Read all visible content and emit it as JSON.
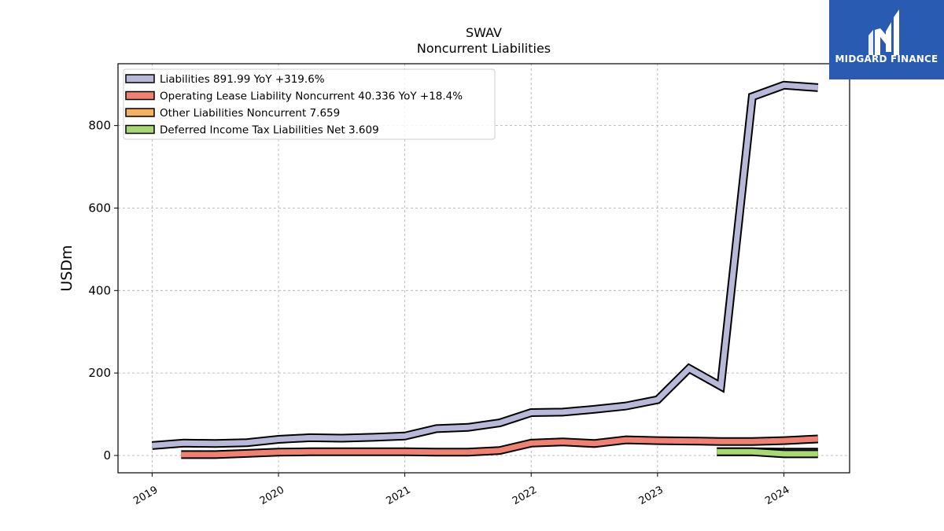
{
  "chart_data": {
    "type": "line",
    "title": "SWAV",
    "subtitle": "Noncurrent  Liabilities",
    "ylabel": "USDm",
    "xlabel": "",
    "ylim": [
      -42,
      950
    ],
    "xlim": [
      2018.73,
      2024.52
    ],
    "yticks": [
      0,
      200,
      400,
      600,
      800
    ],
    "xticks": [
      "2019",
      "2020",
      "2021",
      "2022",
      "2023",
      "2024"
    ],
    "grid": true,
    "legend_position": "top-left",
    "series": [
      {
        "name": "Liabilities",
        "legend_label": "Liabilities  891.99 YoY +319.6%",
        "color": "#b8b8d8",
        "x": [
          2019.0,
          2019.25,
          2019.5,
          2019.75,
          2020.0,
          2020.25,
          2020.5,
          2020.75,
          2021.0,
          2021.25,
          2021.5,
          2021.75,
          2022.0,
          2022.25,
          2022.5,
          2022.75,
          2023.0,
          2023.25,
          2023.5,
          2023.75,
          2024.0,
          2024.27
        ],
        "values": [
          24,
          30,
          29,
          31,
          39,
          43,
          42,
          44,
          47,
          65,
          68,
          79,
          104,
          105,
          112,
          120,
          135,
          211,
          168,
          870,
          898,
          892
        ]
      },
      {
        "name": "Operating Lease Liability Noncurrent",
        "legend_label": "Operating Lease Liability Noncurrent  40.336 YoY +18.4%",
        "color": "#f08070",
        "x": [
          2019.23,
          2019.5,
          2019.75,
          2020.0,
          2020.25,
          2020.5,
          2020.75,
          2021.0,
          2021.25,
          2021.5,
          2021.75,
          2022.0,
          2022.25,
          2022.5,
          2022.75,
          2023.0,
          2023.25,
          2023.5,
          2023.75,
          2024.0,
          2024.27
        ],
        "values": [
          2,
          2,
          5,
          8,
          9,
          9,
          9,
          9,
          8,
          8,
          12,
          30,
          33,
          29,
          38,
          36,
          35,
          34,
          34,
          36,
          40
        ]
      },
      {
        "name": "Other Liabilities Noncurrent",
        "legend_label": "Other Liabilities Noncurrent  7.659",
        "color": "#f5b060",
        "x": [
          2023.47,
          2023.75,
          2024.0,
          2024.27
        ],
        "values": [
          9,
          9,
          8,
          8
        ]
      },
      {
        "name": "Deferred Income Tax Liabilities Net",
        "legend_label": "Deferred Income Tax Liabilities Net  3.609",
        "color": "#a8d870",
        "x": [
          2023.47,
          2023.75,
          2024.0,
          2024.27
        ],
        "values": [
          9,
          9,
          4,
          4
        ]
      }
    ]
  },
  "logo": {
    "text": "MIDGARD FINANCE",
    "background": "#2a5bb3"
  }
}
